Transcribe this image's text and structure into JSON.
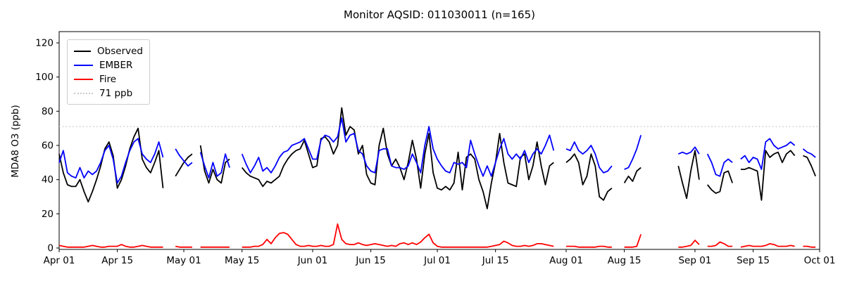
{
  "chart_data": {
    "type": "line",
    "title": "Monitor AQSID: 011030011 (n=165)",
    "xlabel": "",
    "ylabel": "MDA8 O3 (ppb)",
    "n_points_label": "n=165",
    "x_tick_labels": [
      "Apr 01",
      "Apr 15",
      "May 01",
      "May 15",
      "Jun 01",
      "Jun 15",
      "Jul 01",
      "Jul 15",
      "Aug 01",
      "Aug 15",
      "Sep 01",
      "Sep 15",
      "Oct 01"
    ],
    "x_tick_days": [
      0,
      14,
      30,
      44,
      61,
      75,
      91,
      105,
      122,
      136,
      153,
      167,
      183
    ],
    "x_total_days": 183,
    "y_ticks": [
      0,
      20,
      40,
      60,
      80,
      100,
      120
    ],
    "ylim": [
      -1,
      126.6
    ],
    "grid": false,
    "legend_position": "upper left",
    "ref_line": {
      "value": 71,
      "label": "71 ppb",
      "color": "#c9c9c9",
      "style": "dotted"
    },
    "series": [
      {
        "name": "Observed",
        "color": "#000000",
        "values": [
          55,
          44,
          37,
          36,
          36,
          40,
          33,
          27,
          33,
          40,
          48,
          58,
          62,
          54,
          35,
          40,
          48,
          58,
          65,
          70,
          52,
          47,
          44,
          50,
          57,
          35,
          null,
          null,
          42,
          46,
          50,
          53,
          55,
          null,
          60,
          45,
          38,
          46,
          40,
          38,
          50,
          52,
          null,
          null,
          47,
          44,
          42,
          41,
          40,
          36,
          39,
          38,
          40,
          42,
          48,
          52,
          55,
          57,
          58,
          63,
          55,
          47,
          48,
          64,
          65,
          62,
          55,
          60,
          82,
          66,
          71,
          69,
          55,
          60,
          43,
          38,
          37,
          60,
          70,
          55,
          48,
          52,
          47,
          40,
          50,
          63,
          52,
          35,
          55,
          67,
          44,
          35,
          34,
          36,
          34,
          38,
          56,
          34,
          53,
          55,
          52,
          40,
          33,
          23,
          38,
          50,
          67,
          50,
          38,
          37,
          36,
          53,
          55,
          40,
          48,
          62,
          48,
          37,
          48,
          50,
          null,
          null,
          50,
          52,
          55,
          50,
          37,
          42,
          55,
          48,
          30,
          28,
          33,
          35,
          null,
          null,
          38,
          42,
          39,
          45,
          47,
          null,
          null,
          null,
          null,
          null,
          null,
          null,
          null,
          48,
          38,
          29,
          45,
          57,
          40,
          null,
          37,
          34,
          32,
          33,
          44,
          45,
          38,
          null,
          46,
          46,
          47,
          46,
          45,
          28,
          57,
          53,
          55,
          56,
          50,
          55,
          57,
          54,
          null,
          54,
          53,
          48,
          42
        ]
      },
      {
        "name": "EMBER",
        "color": "#0000ff",
        "values": [
          50,
          57,
          44,
          42,
          41,
          47,
          41,
          45,
          43,
          45,
          50,
          57,
          60,
          52,
          38,
          42,
          50,
          57,
          62,
          64,
          55,
          52,
          50,
          55,
          62,
          53,
          null,
          null,
          58,
          54,
          51,
          48,
          50,
          null,
          56,
          48,
          41,
          50,
          42,
          44,
          55,
          47,
          null,
          null,
          55,
          49,
          44,
          48,
          53,
          45,
          47,
          44,
          48,
          53,
          56,
          57,
          60,
          61,
          62,
          64,
          58,
          52,
          52,
          63,
          66,
          65,
          62,
          65,
          76,
          62,
          66,
          67,
          57,
          55,
          48,
          45,
          44,
          57,
          58,
          58,
          48,
          47,
          47,
          46,
          48,
          55,
          50,
          44,
          60,
          71,
          58,
          52,
          48,
          45,
          44,
          50,
          49,
          50,
          47,
          63,
          55,
          48,
          42,
          48,
          42,
          50,
          58,
          64,
          55,
          52,
          55,
          52,
          57,
          50,
          55,
          58,
          55,
          60,
          66,
          57,
          null,
          null,
          58,
          57,
          62,
          57,
          55,
          57,
          60,
          55,
          47,
          44,
          45,
          48,
          null,
          null,
          46,
          47,
          52,
          58,
          66,
          null,
          null,
          null,
          null,
          null,
          null,
          null,
          null,
          55,
          56,
          55,
          56,
          59,
          55,
          null,
          55,
          50,
          43,
          42,
          50,
          52,
          50,
          null,
          52,
          54,
          50,
          53,
          52,
          46,
          62,
          64,
          60,
          58,
          59,
          60,
          62,
          60,
          null,
          58,
          56,
          55,
          53
        ]
      },
      {
        "name": "Fire",
        "color": "#ff0000",
        "values": [
          1.5,
          1,
          0.5,
          0.5,
          0.5,
          0.5,
          0.5,
          1,
          1.5,
          1,
          0.5,
          0.5,
          1,
          1,
          1,
          2,
          1,
          0.5,
          0.5,
          1,
          1.5,
          1,
          0.5,
          0.5,
          0.5,
          0.5,
          null,
          null,
          1,
          0.5,
          0.5,
          0.5,
          0.5,
          null,
          0.5,
          0.5,
          0.5,
          0.5,
          0.5,
          0.5,
          0.5,
          0.5,
          null,
          null,
          0.5,
          0.5,
          0.5,
          1,
          1,
          2,
          5,
          2.5,
          6,
          8.5,
          9,
          8,
          5,
          2,
          1,
          1,
          1.5,
          1,
          1,
          1.5,
          1,
          1,
          2,
          14,
          5,
          2.5,
          2,
          2,
          3,
          2,
          1.5,
          2,
          2.5,
          2,
          1.5,
          1,
          1.5,
          1,
          2.5,
          3,
          2,
          3,
          2,
          3.5,
          6,
          8,
          3,
          1,
          0.5,
          0.5,
          0.5,
          0.5,
          0.5,
          0.5,
          0.5,
          0.5,
          0.5,
          0.5,
          0.5,
          0.5,
          1,
          1.5,
          2,
          4,
          3,
          1.5,
          1,
          1,
          1.5,
          1,
          1.5,
          2.5,
          2.5,
          2,
          1.5,
          1,
          null,
          null,
          1,
          1,
          1,
          0.5,
          0.5,
          0.5,
          0.5,
          0.5,
          1,
          1,
          0.5,
          0.5,
          null,
          null,
          0.5,
          0.5,
          0.5,
          1,
          8,
          null,
          null,
          null,
          null,
          null,
          null,
          null,
          null,
          0.5,
          0.5,
          1,
          1.5,
          4.5,
          2,
          null,
          1,
          1,
          1.5,
          3.5,
          2.5,
          1,
          1,
          null,
          0.5,
          1,
          1.5,
          1,
          1,
          1,
          1.5,
          2.5,
          2,
          1,
          1,
          1,
          1.5,
          1,
          null,
          1,
          1,
          0.5,
          0.5
        ]
      }
    ],
    "legend": {
      "items": [
        {
          "label": "Observed",
          "color": "#000000",
          "style": "solid"
        },
        {
          "label": "EMBER",
          "color": "#0000ff",
          "style": "solid"
        },
        {
          "label": "Fire",
          "color": "#ff0000",
          "style": "solid"
        },
        {
          "label": "71 ppb",
          "color": "#c9c9c9",
          "style": "dotted"
        }
      ]
    }
  }
}
